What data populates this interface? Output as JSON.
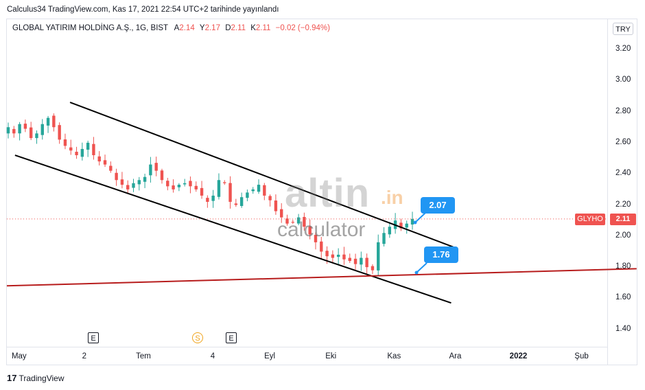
{
  "header": {
    "caption": "Calculus34 TradingView.com, Kas 17, 2021 22:54 UTC+2 tarihinde yayınlandı"
  },
  "legend": {
    "symbol": "GLOBAL YATIRIM HOLDİNG A.Ş., 1G, BIST",
    "open_label": "A",
    "open": "2.14",
    "high_label": "Y",
    "high": "2.17",
    "low_label": "D",
    "low": "2.11",
    "close_label": "K",
    "close": "2.11",
    "change": "−0.02 (−0.94%)"
  },
  "currency": "TRY",
  "price_tag": {
    "symbol": "GLYHO",
    "price": "2.11"
  },
  "callouts": {
    "upper": "2.07",
    "lower": "1.76"
  },
  "events": [
    "E",
    "S",
    "E"
  ],
  "watermark": {
    "brand": "altin",
    "suffix": ".in",
    "sub": "calculator"
  },
  "footer": {
    "logo": "17",
    "brand": "TradingView"
  },
  "colors": {
    "up": "#26a69a",
    "down": "#ef5350",
    "channel": "#000000",
    "support": "#b71c1c",
    "callout": "#2196f3"
  },
  "chart_data": {
    "type": "candlestick",
    "y_ticks": [
      "3.20",
      "3.00",
      "2.80",
      "2.60",
      "2.40",
      "2.20",
      "2.00",
      "1.80",
      "1.60",
      "1.40"
    ],
    "x_ticks": [
      "May",
      "2",
      "Tem",
      "4",
      "Eyl",
      "Eki",
      "Kas",
      "Ara",
      "2022",
      "Şub"
    ],
    "ylim": [
      1.32,
      3.33
    ],
    "close_series": [
      2.7,
      2.66,
      2.72,
      2.69,
      2.63,
      2.66,
      2.72,
      2.76,
      2.7,
      2.62,
      2.58,
      2.55,
      2.52,
      2.56,
      2.6,
      2.52,
      2.48,
      2.46,
      2.42,
      2.36,
      2.33,
      2.3,
      2.34,
      2.36,
      2.38,
      2.46,
      2.42,
      2.36,
      2.32,
      2.3,
      2.33,
      2.34,
      2.32,
      2.3,
      2.26,
      2.22,
      2.26,
      2.36,
      2.34,
      2.22,
      2.2,
      2.25,
      2.28,
      2.3,
      2.33,
      2.26,
      2.23,
      2.16,
      2.12,
      2.08,
      2.09,
      2.12,
      2.06,
      2.01,
      1.96,
      1.9,
      1.87,
      1.86,
      1.88,
      1.85,
      1.84,
      1.82,
      1.86,
      1.8,
      1.78,
      1.96,
      2.02,
      2.06,
      2.1,
      2.05,
      2.08,
      2.11
    ],
    "trendlines": [
      {
        "name": "channel-upper",
        "points": [
          [
            "2021-05-26",
            2.86
          ],
          [
            "2021-11-30",
            1.93
          ]
        ]
      },
      {
        "name": "channel-lower",
        "points": [
          [
            "2021-04-29",
            2.52
          ],
          [
            "2021-11-29",
            1.57
          ]
        ]
      },
      {
        "name": "support",
        "points": [
          [
            "2021-04-25",
            1.68
          ],
          [
            "2022-02-28",
            1.79
          ]
        ]
      }
    ],
    "current_price_line": 2.11
  }
}
